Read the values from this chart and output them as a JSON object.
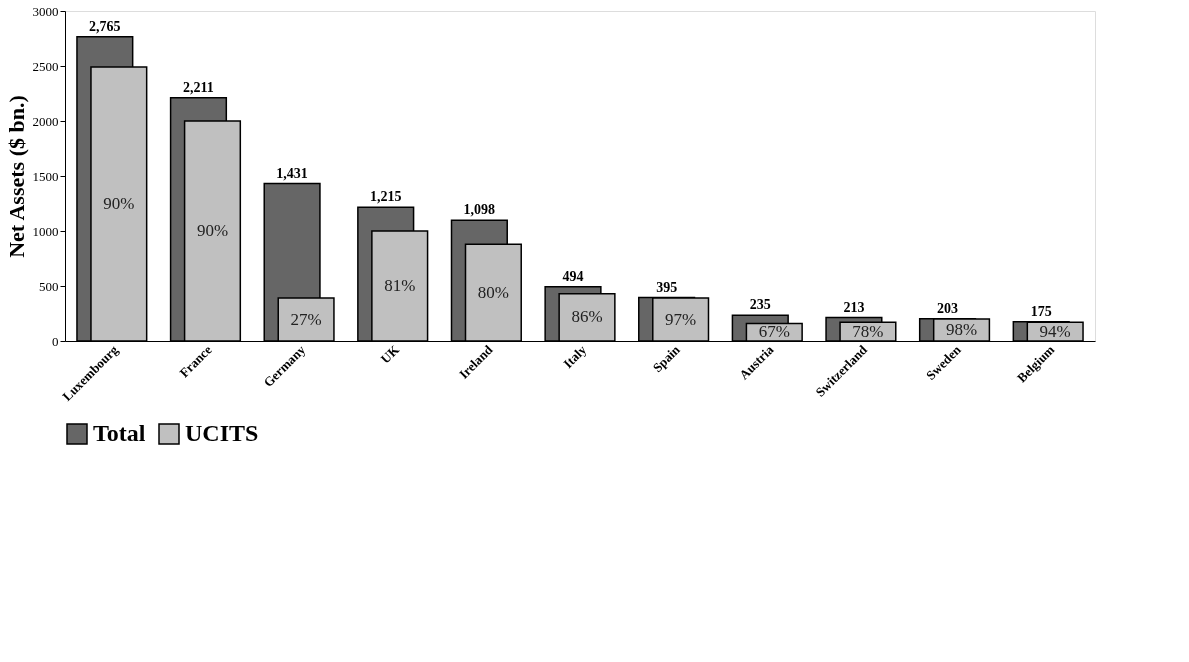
{
  "chart_data": {
    "type": "bar",
    "ylabel": "Net Assets ($ bn.)",
    "categories": [
      "Luxembourg",
      "France",
      "Germany",
      "UK",
      "Ireland",
      "Italy",
      "Spain",
      "Austria",
      "Switzerland",
      "Sweden",
      "Belgium"
    ],
    "series": [
      {
        "name": "Total",
        "color": "#666666",
        "values": [
          2765,
          2211,
          1431,
          1215,
          1098,
          494,
          395,
          235,
          213,
          203,
          175
        ],
        "value_labels": [
          "2,765",
          "2,211",
          "1,431",
          "1,215",
          "1,098",
          "494",
          "395",
          "235",
          "213",
          "203",
          "175"
        ]
      },
      {
        "name": "UCITS",
        "color": "#c0c0c0",
        "values": [
          2490,
          2000,
          390,
          1000,
          880,
          430,
          390,
          160,
          170,
          200,
          170
        ]
      }
    ],
    "annotations": [
      "90%",
      "90%",
      "27%",
      "81%",
      "80%",
      "86%",
      "97%",
      "67%",
      "78%",
      "98%",
      "94%"
    ],
    "ylim": [
      0,
      3000
    ],
    "yticks": [
      0,
      500,
      1000,
      1500,
      2000,
      2500,
      3000
    ],
    "grid": false,
    "legend": "bottom"
  }
}
